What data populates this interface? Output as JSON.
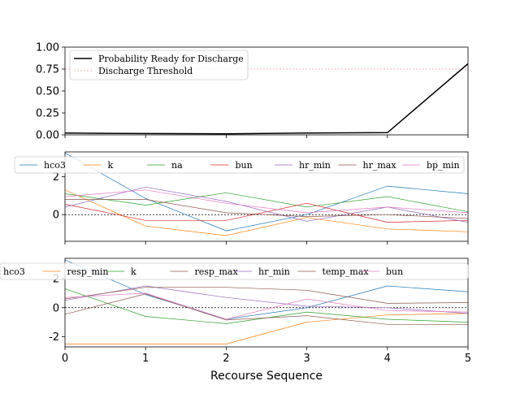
{
  "xlabel": "Recourse Sequence",
  "x_ticks": [
    "0",
    "1",
    "2",
    "3",
    "4",
    "5"
  ],
  "chart_data": [
    {
      "type": "line",
      "x": [
        0,
        1,
        2,
        3,
        4,
        5
      ],
      "xlim": [
        0,
        5
      ],
      "ylim": [
        0,
        1
      ],
      "yticks": [
        "0.00",
        "0.25",
        "0.50",
        "0.75",
        "1.00"
      ],
      "ytick_values": [
        0,
        0.25,
        0.5,
        0.75,
        1.0
      ],
      "legend_position": "top-left",
      "series": [
        {
          "name": "Probability Ready for Discharge",
          "values": [
            0.02,
            0.015,
            0.012,
            0.02,
            0.025,
            0.81
          ],
          "color": "#000000",
          "style": "solid"
        }
      ],
      "threshold": {
        "name": "Discharge Threshold",
        "value": 0.75,
        "color": "#e8a0a0"
      }
    },
    {
      "type": "line",
      "x": [
        0,
        1,
        2,
        3,
        4,
        5
      ],
      "xlim": [
        0,
        5
      ],
      "ylim": [
        -1.4,
        3.3
      ],
      "yticks": [
        "0",
        "2"
      ],
      "ytick_values": [
        0,
        2
      ],
      "zero_line": true,
      "legend_position": "top",
      "series": [
        {
          "name": "hco3",
          "values": [
            3.25,
            0.85,
            -0.85,
            0.0,
            1.5,
            1.1
          ],
          "color": "#1f77b4"
        },
        {
          "name": "k",
          "values": [
            1.3,
            -0.6,
            -1.1,
            -0.15,
            -0.75,
            -0.9
          ],
          "color": "#ff7f0e"
        },
        {
          "name": "na",
          "values": [
            1.1,
            0.5,
            1.15,
            0.4,
            0.95,
            0.15
          ],
          "color": "#2ca02c"
        },
        {
          "name": "bun",
          "values": [
            0.55,
            -0.3,
            -0.3,
            0.6,
            -0.4,
            -0.3
          ],
          "color": "#d62728"
        },
        {
          "name": "hr_min",
          "values": [
            0.4,
            1.45,
            0.7,
            -0.35,
            0.4,
            -0.4
          ],
          "color": "#9467bd"
        },
        {
          "name": "hr_max",
          "values": [
            0.8,
            0.8,
            0.1,
            -0.1,
            0.0,
            -0.2
          ],
          "color": "#8c564b"
        },
        {
          "name": "bp_min",
          "values": [
            0.95,
            1.3,
            0.6,
            0.1,
            0.4,
            0.1
          ],
          "color": "#e377c2"
        }
      ]
    },
    {
      "type": "line",
      "x": [
        0,
        1,
        2,
        3,
        4,
        5
      ],
      "xlim": [
        0,
        5
      ],
      "ylim": [
        -2.7,
        3.4
      ],
      "yticks": [
        "-2",
        "0",
        "2"
      ],
      "ytick_values": [
        -2,
        0,
        2
      ],
      "zero_line": true,
      "legend_position": "top",
      "series": [
        {
          "name": "hco3",
          "values": [
            3.3,
            0.9,
            -0.8,
            0.0,
            1.5,
            1.1
          ],
          "color": "#1f77b4"
        },
        {
          "name": "resp_min",
          "values": [
            -2.5,
            -2.5,
            -2.5,
            -1.0,
            -0.5,
            -0.4
          ],
          "color": "#ff7f0e"
        },
        {
          "name": "k",
          "values": [
            1.3,
            -0.6,
            -1.1,
            -0.3,
            -0.8,
            -1.0
          ],
          "color": "#2ca02c"
        },
        {
          "name": "resp_max",
          "values": [
            -0.45,
            0.95,
            -0.85,
            -0.55,
            -1.15,
            -1.15
          ],
          "color": "#8c564b"
        },
        {
          "name": "hr_min",
          "values": [
            0.5,
            1.5,
            0.7,
            0.1,
            0.0,
            -0.4
          ],
          "color": "#9467bd"
        },
        {
          "name": "temp_max",
          "values": [
            0.6,
            1.4,
            1.4,
            1.2,
            0.3,
            0.35
          ],
          "color": "#8c564b"
        },
        {
          "name": "bun",
          "values": [
            0.7,
            1.0,
            -0.8,
            0.6,
            -0.2,
            -0.3
          ],
          "color": "#e377c2"
        }
      ]
    }
  ]
}
